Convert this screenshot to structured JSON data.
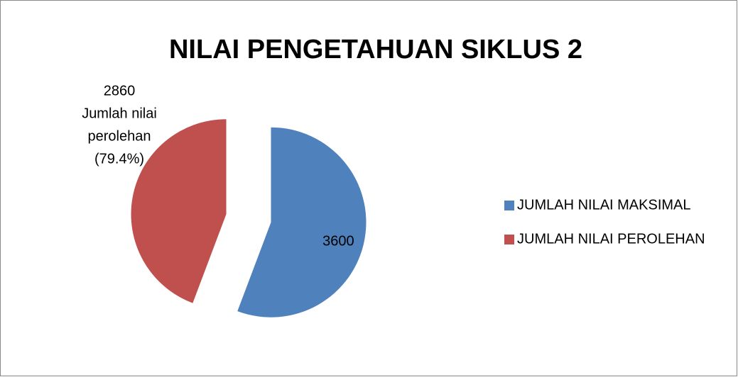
{
  "chart_data": {
    "type": "pie",
    "title": "NILAI PENGETAHUAN SIKLUS 2",
    "categories": [
      "JUMLAH NILAI MAKSIMAL",
      "JUMLAH NILAI PEROLEHAN"
    ],
    "values": [
      3600,
      2860
    ],
    "value_labels": [
      [
        "3600"
      ],
      [
        "2860",
        "Jumlah nilai",
        "perolehan",
        "(79.4%)"
      ]
    ],
    "colors": [
      "#4f81bd",
      "#c0504d"
    ],
    "exploded": true,
    "legend": "right"
  }
}
